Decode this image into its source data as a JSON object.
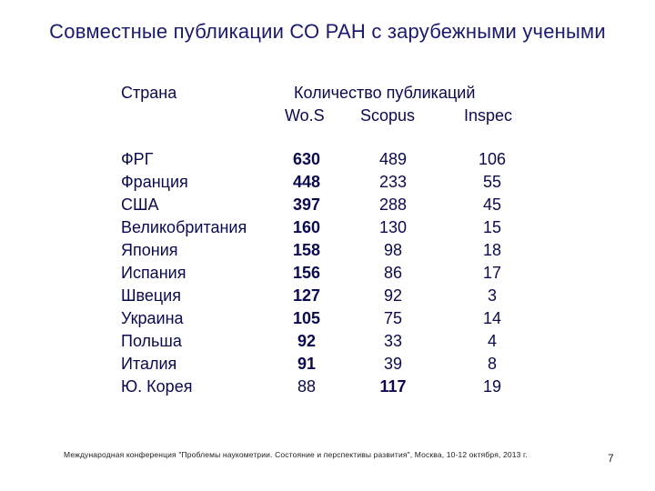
{
  "slide": {
    "title": "Совместные публикации СО РАН с зарубежными учеными",
    "table": {
      "header_country": "Страна",
      "header_count": "Количество публикаций",
      "col_wos": "Wo.S",
      "col_scopus": "Scopus",
      "col_inspec": "Inspec",
      "rows": [
        {
          "country": "ФРГ",
          "wos": "630",
          "scopus": "489",
          "inspec": "106"
        },
        {
          "country": "Франция",
          "wos": "448",
          "scopus": "233",
          "inspec": "55"
        },
        {
          "country": "США",
          "wos": "397",
          "scopus": "288",
          "inspec": "45"
        },
        {
          "country": "Великобритания",
          "wos": "160",
          "scopus": "130",
          "inspec": "15"
        },
        {
          "country": "Япония",
          "wos": "158",
          "scopus": "98",
          "inspec": "18"
        },
        {
          "country": "Испания",
          "wos": "156",
          "scopus": "86",
          "inspec": "17"
        },
        {
          "country": "Швеция",
          "wos": "127",
          "scopus": "92",
          "inspec": "3"
        },
        {
          "country": "Украина",
          "wos": "105",
          "scopus": "75",
          "inspec": "14"
        },
        {
          "country": "Польша",
          "wos": "92",
          "scopus": "33",
          "inspec": "4"
        },
        {
          "country": "Италия",
          "wos": "91",
          "scopus": "39",
          "inspec": "8"
        },
        {
          "country": "Ю. Корея",
          "wos": "88",
          "scopus": "117",
          "inspec": "19"
        }
      ]
    },
    "footer": "Международная конференция \"Проблемы наукометрии. Состояние и перспективы развития\", Москва, 10-12 октября, 2013 г.",
    "page_number": "7"
  }
}
